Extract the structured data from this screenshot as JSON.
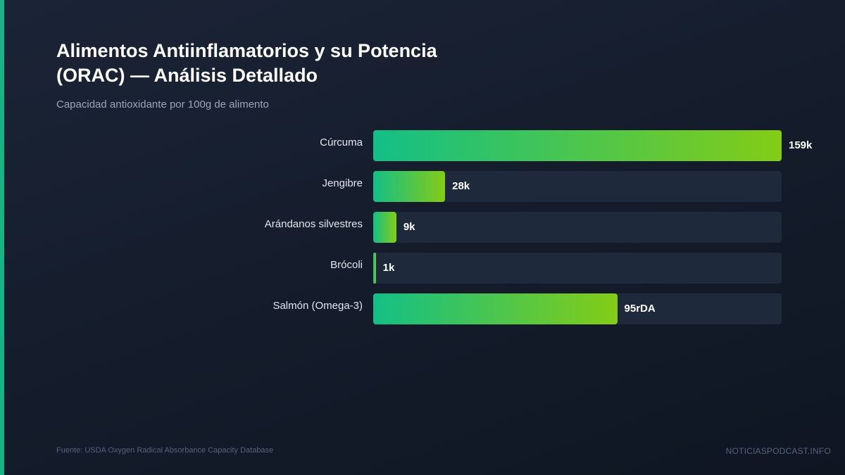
{
  "header": {
    "title": "Alimentos Antiinflamatorios y su Potencia (ORAC) — Análisis Detallado",
    "subtitle": "Capacidad antioxidante por 100g de alimento"
  },
  "footer": {
    "source": "Fuente: USDA Oxygen Radical Absorbance Capacity Database",
    "brand": "NOTICIASPODCAST.INFO"
  },
  "colors": {
    "background": "#141c2b",
    "accent": "#19b383",
    "bar_start": "#13bf86",
    "bar_end": "#84cc16",
    "track": "#1e293b"
  },
  "chart_data": {
    "type": "bar",
    "orientation": "horizontal",
    "title": "Alimentos Antiinflamatorios y su Potencia (ORAC) — Análisis Detallado",
    "subtitle": "Capacidad antioxidante por 100g de alimento",
    "categories": [
      "Cúrcuma",
      "Jengibre",
      "Arándanos silvestres",
      "Brócoli",
      "Salmón (Omega-3)"
    ],
    "values": [
      159,
      28,
      9,
      1,
      95
    ],
    "value_labels": [
      "159k",
      "28k",
      "9k",
      "1k",
      "95rDA"
    ],
    "xlim": [
      0,
      159
    ],
    "grid": false,
    "legend": "none"
  }
}
